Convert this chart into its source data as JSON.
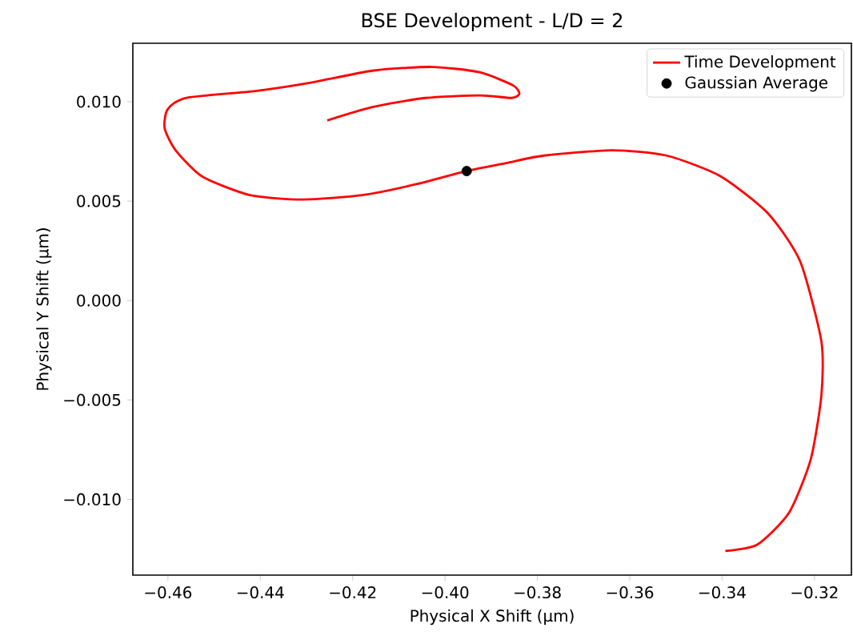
{
  "chart_data": {
    "type": "line",
    "title": "BSE Development - L/D = 2",
    "xlabel": "Physical X Shift (μm)",
    "ylabel": "Physical Y Shift (μm)",
    "xlim": [
      -0.4676,
      -0.312
    ],
    "ylim": [
      -0.01381,
      0.01294
    ],
    "xticks": [
      {
        "value": -0.46,
        "label": "−0.46"
      },
      {
        "value": -0.44,
        "label": "−0.44"
      },
      {
        "value": -0.42,
        "label": "−0.42"
      },
      {
        "value": -0.4,
        "label": "−0.40"
      },
      {
        "value": -0.38,
        "label": "−0.38"
      },
      {
        "value": -0.36,
        "label": "−0.36"
      },
      {
        "value": -0.34,
        "label": "−0.34"
      },
      {
        "value": -0.32,
        "label": "−0.32"
      }
    ],
    "yticks": [
      {
        "value": -0.01,
        "label": "−0.010"
      },
      {
        "value": -0.005,
        "label": "−0.005"
      },
      {
        "value": 0.0,
        "label": "0.000"
      },
      {
        "value": 0.005,
        "label": "0.005"
      },
      {
        "value": 0.01,
        "label": "0.010"
      }
    ],
    "legend": "top right",
    "grid": false,
    "series": [
      {
        "name": "Time Development",
        "color": "#ff0000",
        "marker": "none",
        "line_style": "solid",
        "x": [
          -0.4255,
          -0.4157,
          -0.4042,
          -0.3925,
          -0.3856,
          -0.3839,
          -0.3852,
          -0.3925,
          -0.4029,
          -0.4157,
          -0.4295,
          -0.441,
          -0.4561,
          -0.4601,
          -0.4607,
          -0.4584,
          -0.4526,
          -0.4422,
          -0.4307,
          -0.418,
          -0.4064,
          -0.3954,
          -0.3868,
          -0.3786,
          -0.3636,
          -0.352,
          -0.3405,
          -0.3301,
          -0.3231,
          -0.3185,
          -0.3185,
          -0.3208,
          -0.3255,
          -0.3324,
          -0.3393
        ],
        "values": [
          0.00906,
          0.00973,
          0.01019,
          0.01032,
          0.01019,
          0.0104,
          0.01081,
          0.01148,
          0.01175,
          0.01156,
          0.01094,
          0.01054,
          0.01019,
          0.0096,
          0.00866,
          0.00758,
          0.00624,
          0.0053,
          0.00508,
          0.0053,
          0.00584,
          0.00651,
          0.00691,
          0.00729,
          0.00756,
          0.00729,
          0.00627,
          0.00439,
          0.00197,
          -0.00206,
          -0.00476,
          -0.00798,
          -0.01067,
          -0.01228,
          -0.0126
        ]
      },
      {
        "name": "Gaussian Average",
        "type": "scatter",
        "color": "#000000",
        "marker": "circle",
        "x": [
          -0.3953
        ],
        "values": [
          0.00651
        ]
      }
    ]
  }
}
